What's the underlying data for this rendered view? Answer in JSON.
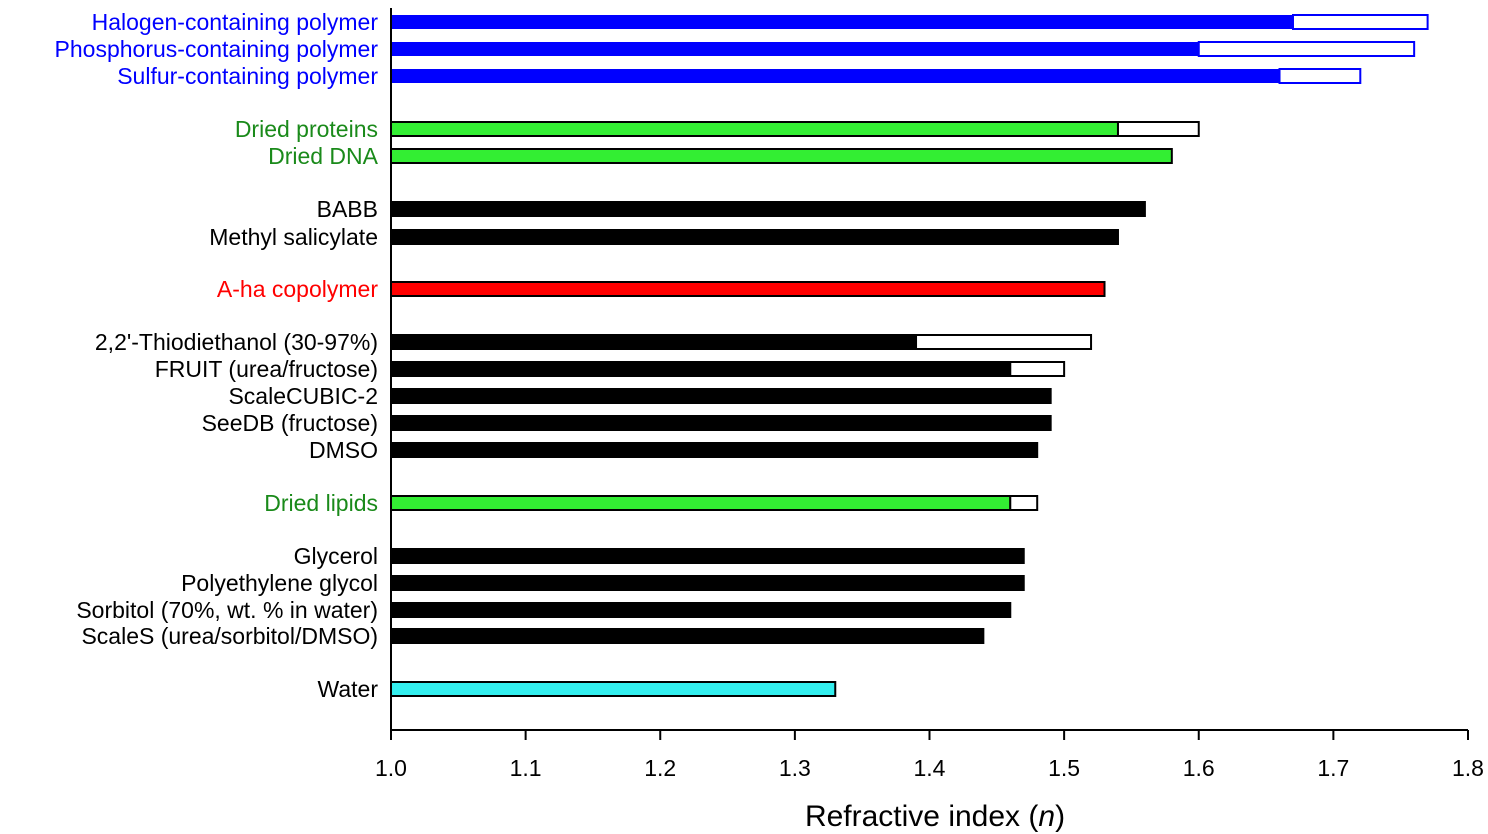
{
  "chart_data": {
    "type": "bar",
    "orientation": "horizontal",
    "title": "",
    "xlabel": "Refractive index",
    "xlabel_symbol": "n",
    "xlim": [
      1.0,
      1.8
    ],
    "xticks": [
      1.0,
      1.1,
      1.2,
      1.3,
      1.4,
      1.5,
      1.6,
      1.7,
      1.8
    ],
    "xtick_labels": [
      "1.0",
      "1.1",
      "1.2",
      "1.3",
      "1.4",
      "1.5",
      "1.6",
      "1.7",
      "1.8"
    ],
    "grid": false,
    "colors": {
      "blue": "#0000ff",
      "green": "#33ee33",
      "green_text": "#1a8a1a",
      "black": "#000000",
      "red": "#ff0000",
      "cyan": "#33eeee"
    },
    "bars": [
      {
        "label": "Halogen-containing polymer",
        "low": 1.67,
        "high": 1.77,
        "color": "blue",
        "label_color": "blue"
      },
      {
        "label": "Phosphorus-containing polymer",
        "low": 1.6,
        "high": 1.76,
        "color": "blue",
        "label_color": "blue"
      },
      {
        "label": "Sulfur-containing polymer",
        "low": 1.66,
        "high": 1.72,
        "color": "blue",
        "label_color": "blue"
      },
      {
        "label": "Dried proteins",
        "low": 1.54,
        "high": 1.6,
        "color": "green",
        "label_color": "green_text"
      },
      {
        "label": "Dried DNA",
        "low": 1.58,
        "high": 1.58,
        "color": "green",
        "label_color": "green_text"
      },
      {
        "label": "BABB",
        "low": 1.56,
        "high": 1.56,
        "color": "black",
        "label_color": "black"
      },
      {
        "label": "Methyl salicylate",
        "low": 1.54,
        "high": 1.54,
        "color": "black",
        "label_color": "black"
      },
      {
        "label": "A-ha copolymer",
        "low": 1.53,
        "high": 1.53,
        "color": "red",
        "label_color": "red"
      },
      {
        "label": "2,2'-Thiodiethanol (30-97%)",
        "low": 1.39,
        "high": 1.52,
        "color": "black",
        "label_color": "black"
      },
      {
        "label": "FRUIT (urea/fructose)",
        "low": 1.46,
        "high": 1.5,
        "color": "black",
        "label_color": "black"
      },
      {
        "label": "ScaleCUBIC-2",
        "low": 1.49,
        "high": 1.49,
        "color": "black",
        "label_color": "black"
      },
      {
        "label": "SeeDB (fructose)",
        "low": 1.49,
        "high": 1.49,
        "color": "black",
        "label_color": "black"
      },
      {
        "label": "DMSO",
        "low": 1.48,
        "high": 1.48,
        "color": "black",
        "label_color": "black"
      },
      {
        "label": "Dried lipids",
        "low": 1.46,
        "high": 1.48,
        "color": "green",
        "label_color": "green_text"
      },
      {
        "label": "Glycerol",
        "low": 1.47,
        "high": 1.47,
        "color": "black",
        "label_color": "black"
      },
      {
        "label": "Polyethylene glycol",
        "low": 1.47,
        "high": 1.47,
        "color": "black",
        "label_color": "black"
      },
      {
        "label": "Sorbitol (70%, wt. % in water)",
        "low": 1.46,
        "high": 1.46,
        "color": "black",
        "label_color": "black"
      },
      {
        "label": "ScaleS (urea/sorbitol/DMSO)",
        "low": 1.44,
        "high": 1.44,
        "color": "black",
        "label_color": "black"
      },
      {
        "label": "Water",
        "low": 1.33,
        "high": 1.33,
        "color": "cyan",
        "label_color": "black"
      }
    ]
  }
}
